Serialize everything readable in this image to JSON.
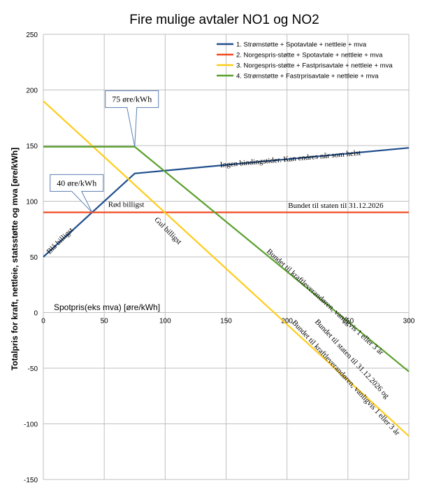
{
  "chart_data": {
    "type": "line",
    "title": "Fire mulige avtaler NO1 og NO2",
    "xlabel": "Spotpris(eks mva) [øre/kWh]",
    "ylabel": "Totalpris for kraft, nettleie, statsstøtte og mva [øre/kWh]",
    "xlim": [
      0,
      300
    ],
    "ylim": [
      -150,
      250
    ],
    "x_ticks": [
      0,
      50,
      100,
      150,
      200,
      250,
      300
    ],
    "y_ticks": [
      250,
      200,
      150,
      100,
      50,
      0,
      -50,
      -100,
      -150
    ],
    "grid": true,
    "legend_position": "top-right",
    "series": [
      {
        "name": "1. Strømstøtte + Spotavtale + nettleie + mva",
        "color": "#1f4e8c",
        "x": [
          0,
          75,
          300
        ],
        "y": [
          50,
          125,
          148
        ]
      },
      {
        "name": "2. Norgespris-støtte + Spotavtale + nettleie + mva",
        "color": "#f04a23",
        "x": [
          0,
          300
        ],
        "y": [
          90,
          90
        ]
      },
      {
        "name": "3. Norgespris-støtte + Fastprisavtale + nettleie + mva",
        "color": "#ffcc1a",
        "x": [
          0,
          300
        ],
        "y": [
          190,
          -111
        ]
      },
      {
        "name": "4. Strømstøtte + Fastrprisavtale + nettleie + mva",
        "color": "#5aa02c",
        "x": [
          0,
          75,
          300
        ],
        "y": [
          149,
          149,
          -53
        ]
      }
    ],
    "callouts": [
      {
        "text": "75 øre/kWh",
        "x": 75,
        "y": 149
      },
      {
        "text": "40 øre/kWh",
        "x": 40,
        "y": 90
      }
    ],
    "annotations": [
      {
        "text": "Ingen bindingstider. Kan endres når som helst",
        "x": 203,
        "y": 136,
        "angle": -5
      },
      {
        "text": "Bundet til staten til 31.12.2026",
        "x": 240,
        "y": 94,
        "angle": 0
      },
      {
        "text": "Blå billigst",
        "x": 15,
        "y": 63,
        "angle": -45
      },
      {
        "text": "Rød billigst",
        "x": 68,
        "y": 95,
        "angle": 0
      },
      {
        "text": "Gul billigst",
        "x": 101,
        "y": 72,
        "angle": 45
      },
      {
        "text": "Bundet til kraftleverandøren, vanligvis 1 eller 3 år",
        "x": 230,
        "y": 8,
        "angle": 42
      },
      {
        "text": "Bundet til staten til 31.12.2026 og",
        "x": 252,
        "y": -43,
        "angle": 47
      },
      {
        "text": "Bundet til kraftleverandøren, vanligvis 1 eller 3 år",
        "x": 247,
        "y": -60,
        "angle": 47
      }
    ]
  }
}
